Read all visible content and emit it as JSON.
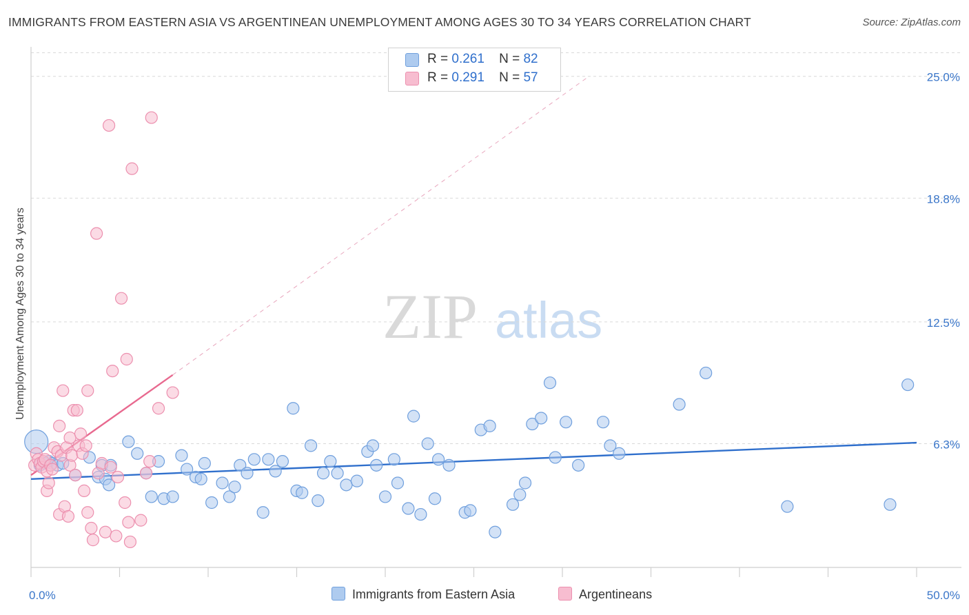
{
  "title": "IMMIGRANTS FROM EASTERN ASIA VS ARGENTINEAN UNEMPLOYMENT AMONG AGES 30 TO 34 YEARS CORRELATION CHART",
  "source": "Source: ZipAtlas.com",
  "watermark": {
    "zip": "ZIP",
    "atlas": "atlas"
  },
  "legend_top": {
    "r_label": "R =",
    "n_label": "N =",
    "rows": [
      {
        "r": "0.261",
        "n": "82"
      },
      {
        "r": "0.291",
        "n": "57"
      }
    ]
  },
  "legend_bottom": [
    "Immigrants from Eastern Asia",
    "Argentineans"
  ],
  "colors": {
    "blue_fill": "#aecbef",
    "blue_stroke": "#6f9fdd",
    "blue_line": "#2f6fcc",
    "pink_fill": "#f7bdd0",
    "pink_stroke": "#ec8fae",
    "pink_line": "#e8698f",
    "axis_text": "#3a76c9",
    "grid": "#d9d9d9"
  },
  "chart_data": {
    "type": "scatter",
    "title": "IMMIGRANTS FROM EASTERN ASIA VS ARGENTINEAN UNEMPLOYMENT AMONG AGES 30 TO 34 YEARS CORRELATION CHART",
    "xlabel": "",
    "ylabel": "Unemployment Among Ages 30 to 34 years",
    "xlim": [
      0,
      50
    ],
    "ylim": [
      0,
      26.5
    ],
    "x_tick_labels": [
      {
        "value": 0,
        "label": "0.0%"
      },
      {
        "value": 50,
        "label": "50.0%"
      }
    ],
    "y_tick_labels": [
      {
        "value": 6.3,
        "label": "6.3%"
      },
      {
        "value": 12.5,
        "label": "12.5%"
      },
      {
        "value": 18.8,
        "label": "18.8%"
      },
      {
        "value": 25.0,
        "label": "25.0%"
      }
    ],
    "series": [
      {
        "name": "Immigrants from Eastern Asia",
        "R": 0.261,
        "N": 82,
        "trend": {
          "x": [
            0,
            50
          ],
          "y": [
            4.5,
            6.35
          ]
        },
        "points": [
          [
            0.3,
            6.4
          ],
          [
            0.5,
            5.2
          ],
          [
            0.8,
            5.3
          ],
          [
            1.0,
            5.4
          ],
          [
            1.2,
            5.3
          ],
          [
            1.5,
            5.2
          ],
          [
            1.8,
            5.3
          ],
          [
            2.5,
            4.7
          ],
          [
            3.3,
            5.6
          ],
          [
            4.0,
            5.2
          ],
          [
            3.8,
            4.6
          ],
          [
            4.2,
            4.5
          ],
          [
            4.4,
            4.2
          ],
          [
            4.5,
            5.2
          ],
          [
            5.5,
            6.4
          ],
          [
            6.0,
            5.8
          ],
          [
            6.5,
            4.8
          ],
          [
            6.8,
            3.6
          ],
          [
            7.2,
            5.4
          ],
          [
            7.5,
            3.5
          ],
          [
            8.0,
            3.6
          ],
          [
            8.5,
            5.7
          ],
          [
            8.8,
            5.0
          ],
          [
            9.3,
            4.6
          ],
          [
            9.6,
            4.5
          ],
          [
            9.8,
            5.3
          ],
          [
            10.2,
            3.3
          ],
          [
            10.8,
            4.3
          ],
          [
            11.2,
            3.6
          ],
          [
            11.5,
            4.1
          ],
          [
            11.8,
            5.2
          ],
          [
            12.2,
            4.8
          ],
          [
            12.6,
            5.5
          ],
          [
            13.1,
            2.8
          ],
          [
            13.4,
            5.5
          ],
          [
            13.8,
            4.9
          ],
          [
            14.2,
            5.4
          ],
          [
            14.8,
            8.1
          ],
          [
            15.0,
            3.9
          ],
          [
            15.3,
            3.8
          ],
          [
            15.8,
            6.2
          ],
          [
            16.2,
            3.4
          ],
          [
            16.5,
            4.8
          ],
          [
            16.9,
            5.4
          ],
          [
            17.3,
            4.8
          ],
          [
            17.8,
            4.2
          ],
          [
            18.4,
            4.4
          ],
          [
            19.0,
            5.9
          ],
          [
            19.3,
            6.2
          ],
          [
            19.5,
            5.2
          ],
          [
            20.0,
            3.6
          ],
          [
            20.5,
            5.5
          ],
          [
            20.7,
            4.3
          ],
          [
            21.3,
            3.0
          ],
          [
            21.6,
            7.7
          ],
          [
            22.0,
            2.7
          ],
          [
            22.4,
            6.3
          ],
          [
            22.8,
            3.5
          ],
          [
            23.0,
            5.5
          ],
          [
            23.6,
            5.2
          ],
          [
            24.5,
            2.8
          ],
          [
            24.8,
            2.9
          ],
          [
            25.4,
            7.0
          ],
          [
            25.9,
            7.2
          ],
          [
            26.2,
            1.8
          ],
          [
            27.2,
            3.2
          ],
          [
            27.6,
            3.7
          ],
          [
            27.9,
            4.3
          ],
          [
            28.3,
            7.3
          ],
          [
            28.8,
            7.6
          ],
          [
            29.3,
            9.4
          ],
          [
            29.6,
            5.6
          ],
          [
            30.2,
            7.4
          ],
          [
            30.9,
            5.2
          ],
          [
            32.3,
            7.4
          ],
          [
            32.7,
            6.2
          ],
          [
            33.2,
            5.8
          ],
          [
            36.6,
            8.3
          ],
          [
            38.1,
            9.9
          ],
          [
            42.7,
            3.1
          ],
          [
            48.5,
            3.2
          ],
          [
            49.5,
            9.3
          ]
        ]
      },
      {
        "name": "Argentineans",
        "R": 0.291,
        "N": 57,
        "trend": {
          "x": [
            0,
            8.0
          ],
          "y": [
            4.7,
            9.8
          ]
        },
        "trend_ext": {
          "x": [
            8.0,
            31.5
          ],
          "y": [
            9.8,
            25.0
          ]
        },
        "points": [
          [
            0.2,
            5.2
          ],
          [
            0.3,
            5.8
          ],
          [
            0.4,
            5.5
          ],
          [
            0.5,
            5.3
          ],
          [
            0.6,
            5.1
          ],
          [
            0.7,
            5.4
          ],
          [
            0.8,
            5.5
          ],
          [
            0.9,
            4.9
          ],
          [
            0.9,
            3.9
          ],
          [
            1.0,
            4.3
          ],
          [
            1.1,
            5.2
          ],
          [
            1.2,
            5.0
          ],
          [
            1.3,
            6.1
          ],
          [
            1.5,
            5.9
          ],
          [
            1.6,
            2.7
          ],
          [
            1.6,
            7.2
          ],
          [
            1.7,
            5.7
          ],
          [
            1.8,
            9.0
          ],
          [
            1.9,
            3.1
          ],
          [
            2.0,
            6.1
          ],
          [
            2.1,
            2.6
          ],
          [
            2.2,
            5.2
          ],
          [
            2.2,
            6.6
          ],
          [
            2.3,
            5.7
          ],
          [
            2.4,
            8.0
          ],
          [
            2.5,
            4.7
          ],
          [
            2.6,
            8.0
          ],
          [
            2.7,
            6.2
          ],
          [
            2.8,
            6.8
          ],
          [
            2.9,
            5.8
          ],
          [
            3.0,
            3.9
          ],
          [
            3.1,
            6.2
          ],
          [
            3.2,
            9.0
          ],
          [
            3.2,
            2.8
          ],
          [
            3.4,
            2.0
          ],
          [
            3.5,
            1.4
          ],
          [
            3.7,
            17.0
          ],
          [
            3.8,
            4.8
          ],
          [
            4.0,
            5.3
          ],
          [
            4.2,
            1.8
          ],
          [
            4.4,
            22.5
          ],
          [
            4.5,
            5.1
          ],
          [
            4.6,
            10.0
          ],
          [
            4.8,
            1.6
          ],
          [
            4.9,
            4.6
          ],
          [
            5.1,
            13.7
          ],
          [
            5.3,
            3.3
          ],
          [
            5.4,
            10.6
          ],
          [
            5.5,
            2.3
          ],
          [
            5.6,
            1.3
          ],
          [
            5.7,
            20.3
          ],
          [
            6.2,
            2.4
          ],
          [
            6.5,
            4.8
          ],
          [
            6.7,
            5.4
          ],
          [
            6.8,
            22.9
          ],
          [
            7.2,
            8.1
          ],
          [
            8.0,
            8.9
          ]
        ]
      }
    ]
  }
}
